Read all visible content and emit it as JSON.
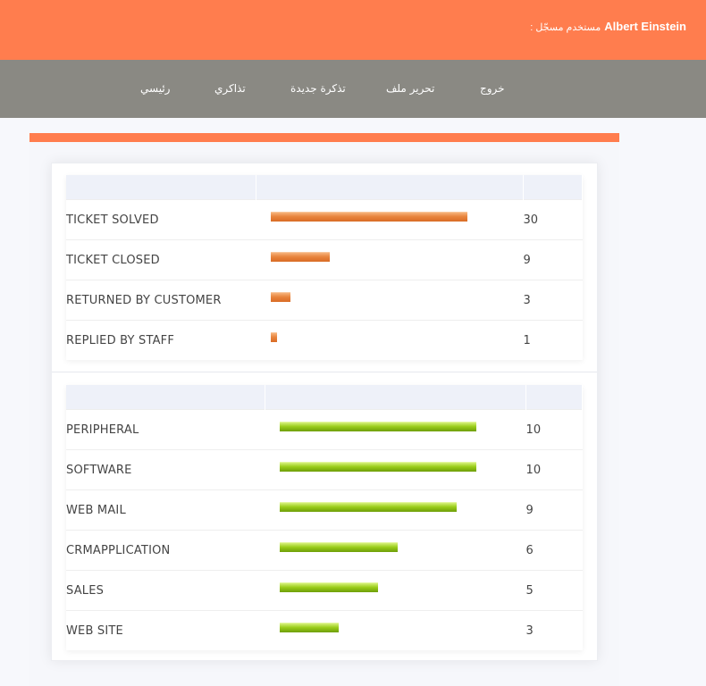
{
  "header": {
    "user_name": "Albert Einstein",
    "user_label": ": مستخدم مسجّل",
    "background": "#ff7d4e"
  },
  "nav": {
    "items": [
      {
        "label": "رئيسي"
      },
      {
        "label": "تذاكري"
      },
      {
        "label": "تذكرة جديدة"
      },
      {
        "label": "تحرير ملف"
      },
      {
        "label": "خروج"
      }
    ],
    "background": "#8a8983"
  },
  "status_table": {
    "bar_color": "#e8843d",
    "max_value": 30,
    "rows": [
      {
        "label": "TICKET SOLVED",
        "value": 30
      },
      {
        "label": "TICKET CLOSED",
        "value": 9
      },
      {
        "label": "RETURNED BY CUSTOMER",
        "value": 3
      },
      {
        "label": "REPLIED BY STAFF",
        "value": 1
      }
    ]
  },
  "category_table": {
    "bar_color": "#9acd1a",
    "max_value": 10,
    "rows": [
      {
        "label": "PERIPHERAL",
        "value": 10
      },
      {
        "label": "SOFTWARE",
        "value": 10
      },
      {
        "label": "WEB MAIL",
        "value": 9
      },
      {
        "label": "CRMAPPLICATION",
        "value": 6
      },
      {
        "label": "SALES",
        "value": 5
      },
      {
        "label": "WEB SITE",
        "value": 3
      }
    ]
  }
}
